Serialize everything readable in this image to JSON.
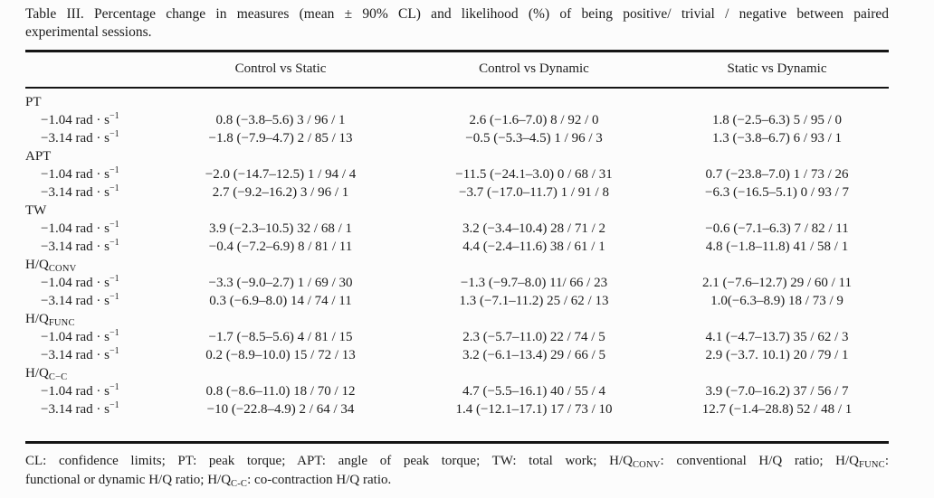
{
  "title": {
    "line1": "Table III. Percentage change in measures (mean ± 90% CL) and likelihood (%) of being positive/ trivial / negative between paired",
    "line2": "experimental sessions."
  },
  "table": {
    "columns": [
      "Control vs Static",
      "Control vs Dynamic",
      "Static vs Dynamic"
    ],
    "groups": [
      {
        "label": [
          {
            "t": "PT"
          }
        ],
        "rows": [
          {
            "speed": [
              {
                "t": "−1.04 rad · s"
              },
              {
                "sup": "−1"
              }
            ],
            "values": [
              "0.8 (−3.8–5.6) 3 / 96 / 1",
              "2.6 (−1.6–7.0) 8 / 92 / 0",
              "1.8 (−2.5–6.3) 5 / 95 / 0"
            ]
          },
          {
            "speed": [
              {
                "t": "−3.14 rad · s"
              },
              {
                "sup": "−1"
              }
            ],
            "values": [
              "−1.8 (−7.9–4.7) 2 / 85 / 13",
              "−0.5 (−5.3–4.5) 1 / 96 / 3",
              "1.3 (−3.8–6.7) 6 / 93 / 1"
            ]
          }
        ]
      },
      {
        "label": [
          {
            "t": "APT"
          }
        ],
        "rows": [
          {
            "speed": [
              {
                "t": "−1.04 rad · s"
              },
              {
                "sup": "−1"
              }
            ],
            "values": [
              "−2.0 (−14.7–12.5) 1 / 94 / 4",
              "−11.5 (−24.1–3.0) 0 / 68 / 31",
              "0.7 (−23.8–7.0) 1 / 73 / 26"
            ]
          },
          {
            "speed": [
              {
                "t": "−3.14 rad · s"
              },
              {
                "sup": "−1"
              }
            ],
            "values": [
              "2.7 (−9.2–16.2) 3 / 96 / 1",
              "−3.7 (−17.0–11.7) 1 / 91 / 8",
              "−6.3 (−16.5–5.1) 0 / 93 / 7"
            ]
          }
        ]
      },
      {
        "label": [
          {
            "t": "TW"
          }
        ],
        "rows": [
          {
            "speed": [
              {
                "t": "−1.04 rad · s"
              },
              {
                "sup": "−1"
              }
            ],
            "values": [
              "3.9 (−2.3–10.5) 32 / 68 / 1",
              "3.2 (−3.4–10.4) 28 / 71 / 2",
              "−0.6 (−7.1–6.3) 7 / 82 / 11"
            ]
          },
          {
            "speed": [
              {
                "t": "−3.14 rad · s"
              },
              {
                "sup": "−1"
              }
            ],
            "values": [
              "−0.4 (−7.2–6.9) 8 / 81 / 11",
              "4.4 (−2.4–11.6) 38 / 61 / 1",
              "4.8 (−1.8–11.8) 41 / 58 / 1"
            ]
          }
        ]
      },
      {
        "label": [
          {
            "t": "H/Q"
          },
          {
            "sub": "CONV"
          }
        ],
        "rows": [
          {
            "speed": [
              {
                "t": "−1.04 rad · s"
              },
              {
                "sup": "−1"
              }
            ],
            "values": [
              "−3.3 (−9.0–2.7) 1 / 69 / 30",
              "−1.3 (−9.7–8.0) 11/ 66 / 23",
              "2.1 (−7.6–12.7) 29 / 60 / 11"
            ]
          },
          {
            "speed": [
              {
                "t": "−3.14 rad · s"
              },
              {
                "sup": "−1"
              }
            ],
            "values": [
              "0.3 (−6.9–8.0) 14 / 74 / 11",
              "1.3 (−7.1–11.2) 25 / 62 / 13",
              "1.0(−6.3–8.9) 18 / 73 / 9"
            ]
          }
        ]
      },
      {
        "label": [
          {
            "t": "H/Q"
          },
          {
            "sub": "FUNC"
          }
        ],
        "rows": [
          {
            "speed": [
              {
                "t": "−1.04 rad · s"
              },
              {
                "sup": "−1"
              }
            ],
            "values": [
              "−1.7 (−8.5–5.6) 4 / 81 / 15",
              "2.3 (−5.7–11.0) 22 / 74 / 5",
              "4.1 (−4.7–13.7) 35 / 62 / 3"
            ]
          },
          {
            "speed": [
              {
                "t": "−3.14 rad · s"
              },
              {
                "sup": "−1"
              }
            ],
            "values": [
              "0.2 (−8.9–10.0) 15 / 72 / 13",
              "3.2 (−6.1–13.4) 29 / 66 / 5",
              "2.9 (−3.7. 10.1) 20 / 79 / 1"
            ]
          }
        ]
      },
      {
        "label": [
          {
            "t": "H/Q"
          },
          {
            "sub": "C−C"
          }
        ],
        "rows": [
          {
            "speed": [
              {
                "t": "−1.04 rad · s"
              },
              {
                "sup": "−1"
              }
            ],
            "values": [
              "0.8 (−8.6–11.0) 18 / 70 / 12",
              "4.7 (−5.5–16.1) 40 / 55 / 4",
              "3.9 (−7.0–16.2) 37 / 56 / 7"
            ]
          },
          {
            "speed": [
              {
                "t": "−3.14 rad · s"
              },
              {
                "sup": "−1"
              }
            ],
            "values": [
              "−10 (−22.8–4.9) 2 / 64 / 34",
              "1.4 (−12.1–17.1) 17 / 73 / 10",
              "12.7 (−1.4–28.8) 52 / 48 / 1"
            ]
          }
        ]
      }
    ]
  },
  "footnote": {
    "line1": [
      {
        "t": "CL: confidence limits; PT: peak torque; APT: angle of peak torque; TW: total work; H/Q"
      },
      {
        "sub": "CONV"
      },
      {
        "t": ": conventional H/Q ratio; H/Q"
      },
      {
        "sub": "FUNC"
      },
      {
        "t": ":"
      }
    ],
    "line2": [
      {
        "t": "functional or dynamic H/Q ratio; H/Q"
      },
      {
        "sub": "C-C"
      },
      {
        "t": ": co-contraction H/Q ratio."
      }
    ]
  },
  "colors": {
    "ink": "#1c1c1c",
    "rule": "#151515",
    "background": "#fcfcfc"
  }
}
